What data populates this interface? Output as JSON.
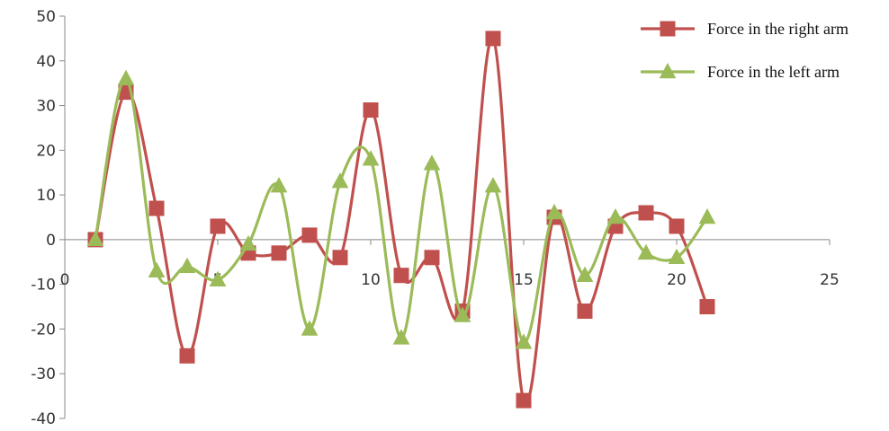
{
  "chart_data": {
    "type": "line",
    "title": "",
    "xlabel": "",
    "ylabel": "",
    "xlim": [
      0,
      25
    ],
    "ylim": [
      -40,
      50
    ],
    "x_ticks": [
      0,
      5,
      10,
      15,
      20,
      25
    ],
    "y_ticks": [
      -40,
      -30,
      -20,
      -10,
      0,
      10,
      20,
      30,
      40,
      50
    ],
    "x_tick_labels": [
      "0",
      "5",
      "10",
      "15",
      "20",
      "25"
    ],
    "y_tick_labels": [
      "-40",
      "-30",
      "-20",
      "-10",
      "0",
      "10",
      "20",
      "30",
      "40",
      "50"
    ],
    "grid": false,
    "smooth": true,
    "legend_position": "top-right",
    "x": [
      1,
      2,
      3,
      4,
      5,
      6,
      7,
      8,
      9,
      10,
      11,
      12,
      13,
      14,
      15,
      16,
      17,
      18,
      19,
      20,
      21
    ],
    "series": [
      {
        "name": "Force in the right arm",
        "color": "#C0504D",
        "marker": "square",
        "values": [
          0,
          33,
          7,
          -26,
          3,
          -3,
          -3,
          1,
          -4,
          29,
          -8,
          -4,
          -16,
          45,
          -36,
          5,
          -16,
          3,
          6,
          3,
          -15
        ]
      },
      {
        "name": "Force in the left arm",
        "color": "#9BBB59",
        "marker": "triangle",
        "values": [
          0,
          36,
          -7,
          -6,
          -9,
          -1,
          12,
          -20,
          13,
          18,
          -22,
          17,
          -17,
          12,
          -23,
          6,
          -8,
          5,
          -3,
          -4,
          5
        ]
      }
    ]
  }
}
